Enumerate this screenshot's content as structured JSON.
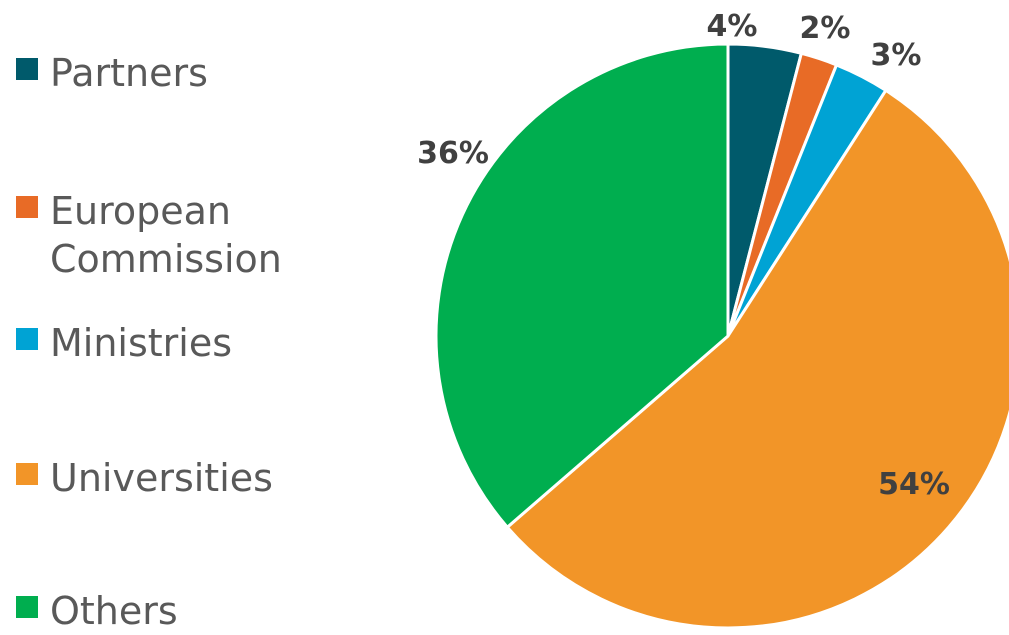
{
  "chart_data": {
    "type": "pie",
    "title": "",
    "legend_position": "left",
    "start_angle_deg": 0,
    "direction": "clockwise",
    "slices": [
      {
        "label": "Partners",
        "value": 4,
        "data_label": "4%",
        "color": "#005A6B"
      },
      {
        "label": "European Commission",
        "label_lines": [
          "European",
          "Commission"
        ],
        "value": 2,
        "data_label": "2%",
        "color": "#E86B26"
      },
      {
        "label": "Ministries",
        "value": 3,
        "data_label": "3%",
        "color": "#00A3D4"
      },
      {
        "label": "Universities",
        "value": 54,
        "data_label": "54%",
        "color": "#F29528"
      },
      {
        "label": "Others",
        "value": 36,
        "data_label": "36%",
        "color": "#00AE4F"
      }
    ]
  }
}
